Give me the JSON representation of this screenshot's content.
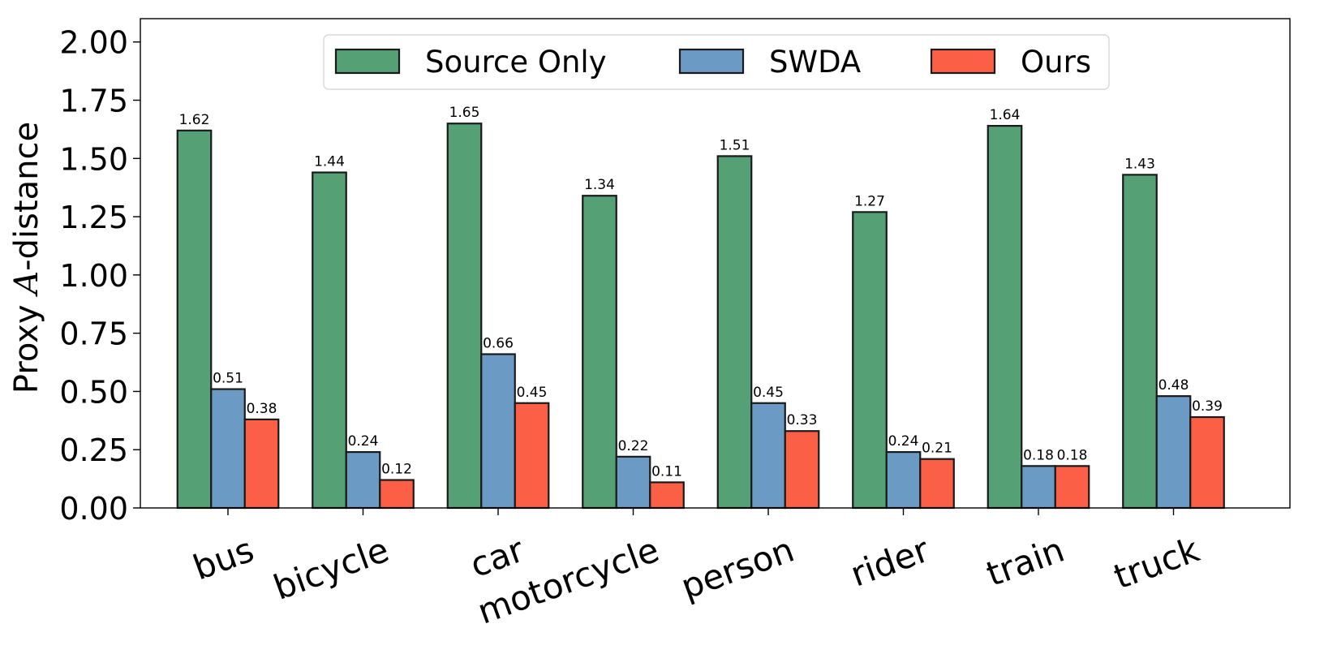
{
  "chart_data": {
    "type": "bar",
    "categories": [
      "bus",
      "bicycle",
      "car",
      "motorcycle",
      "person",
      "rider",
      "train",
      "truck"
    ],
    "series": [
      {
        "name": "Source Only",
        "color": "#55a075",
        "values": [
          1.62,
          1.44,
          1.65,
          1.34,
          1.51,
          1.27,
          1.64,
          1.43
        ],
        "labels": [
          "1.62",
          "1.44",
          "1.65",
          "1.34",
          "1.51",
          "1.27",
          "1.64",
          "1.43"
        ]
      },
      {
        "name": "SWDA",
        "color": "#6b9bc5",
        "values": [
          0.51,
          0.24,
          0.66,
          0.22,
          0.45,
          0.24,
          0.18,
          0.48
        ],
        "labels": [
          "0.51",
          "0.24",
          "0.66",
          "0.22",
          "0.45",
          "0.24",
          "0.18",
          "0.48"
        ]
      },
      {
        "name": "Ours",
        "color": "#fb5f46",
        "values": [
          0.38,
          0.12,
          0.45,
          0.11,
          0.33,
          0.21,
          0.18,
          0.39
        ],
        "labels": [
          "0.38",
          "0.12",
          "0.45",
          "0.11",
          "0.33",
          "0.21",
          "0.18",
          "0.39"
        ]
      }
    ],
    "ylabel_prefix": "Proxy ",
    "ylabel_symbol": "A",
    "ylabel_suffix": "-distance",
    "xlabel": "",
    "ylim": [
      0,
      2.1
    ],
    "yticks": [
      0.0,
      0.25,
      0.5,
      0.75,
      1.0,
      1.25,
      1.5,
      1.75,
      2.0
    ],
    "ytick_labels": [
      "0.00",
      "0.25",
      "0.50",
      "0.75",
      "1.00",
      "1.25",
      "1.50",
      "1.75",
      "2.00"
    ],
    "grid": false,
    "legend_position": "top-center"
  }
}
